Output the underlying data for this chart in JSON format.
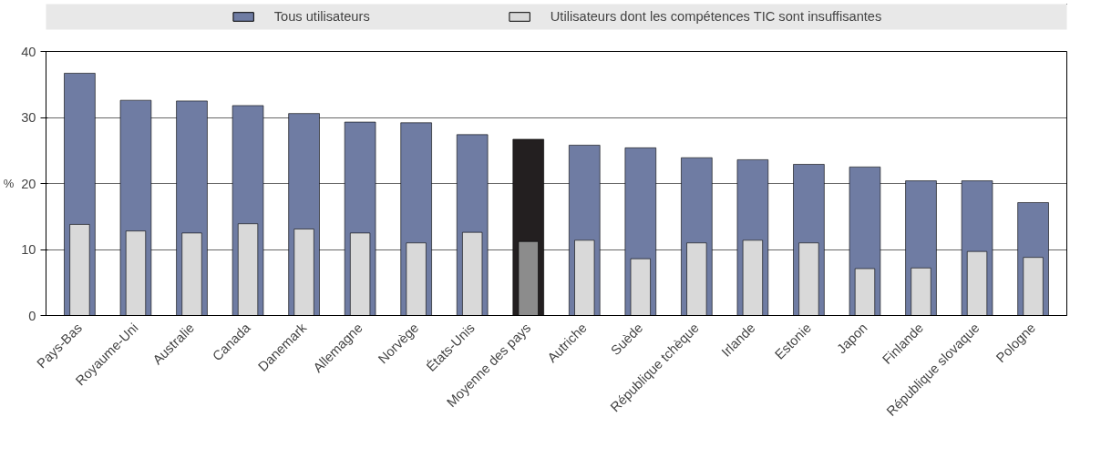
{
  "chart_data": {
    "type": "bar",
    "ylabel": "%",
    "categories": [
      "Pays-Bas",
      "Royaume-Uni",
      "Australie",
      "Canada",
      "Danemark",
      "Allemagne",
      "Norvège",
      "États-Unis",
      "Moyenne des pays",
      "Autriche",
      "Suède",
      "République tchèque",
      "Irlande",
      "Estonie",
      "Japon",
      "Finlande",
      "République slovaque",
      "Pologne"
    ],
    "series": [
      {
        "name": "Tous utilisateurs",
        "color": "#6f7ca3",
        "colors": [
          "#6f7ca3",
          "#6f7ca3",
          "#6f7ca3",
          "#6f7ca3",
          "#6f7ca3",
          "#6f7ca3",
          "#6f7ca3",
          "#6f7ca3",
          "#231f20",
          "#6f7ca3",
          "#6f7ca3",
          "#6f7ca3",
          "#6f7ca3",
          "#6f7ca3",
          "#6f7ca3",
          "#6f7ca3",
          "#6f7ca3",
          "#6f7ca3"
        ],
        "values": [
          36.7,
          32.6,
          32.5,
          31.8,
          30.6,
          29.3,
          29.2,
          27.4,
          26.7,
          25.8,
          25.4,
          23.9,
          23.6,
          22.9,
          22.5,
          20.4,
          20.4,
          17.1
        ]
      },
      {
        "name": "Utilisateurs dont les compétences TIC sont insuffisantes",
        "color": "#d9d9d9",
        "colors": [
          "#d9d9d9",
          "#d9d9d9",
          "#d9d9d9",
          "#d9d9d9",
          "#d9d9d9",
          "#d9d9d9",
          "#d9d9d9",
          "#d9d9d9",
          "#8c8c8c",
          "#d9d9d9",
          "#d9d9d9",
          "#d9d9d9",
          "#d9d9d9",
          "#d9d9d9",
          "#d9d9d9",
          "#d9d9d9",
          "#d9d9d9",
          "#d9d9d9"
        ],
        "values": [
          13.8,
          12.8,
          12.5,
          13.9,
          13.1,
          12.5,
          11.0,
          12.6,
          11.2,
          11.4,
          8.6,
          11.0,
          11.4,
          11.0,
          7.1,
          7.2,
          9.7,
          8.8
        ]
      }
    ],
    "ylim": [
      0,
      40
    ],
    "yticks": [
      0,
      10,
      20,
      30,
      40
    ],
    "grid": "y",
    "legend": "top"
  }
}
